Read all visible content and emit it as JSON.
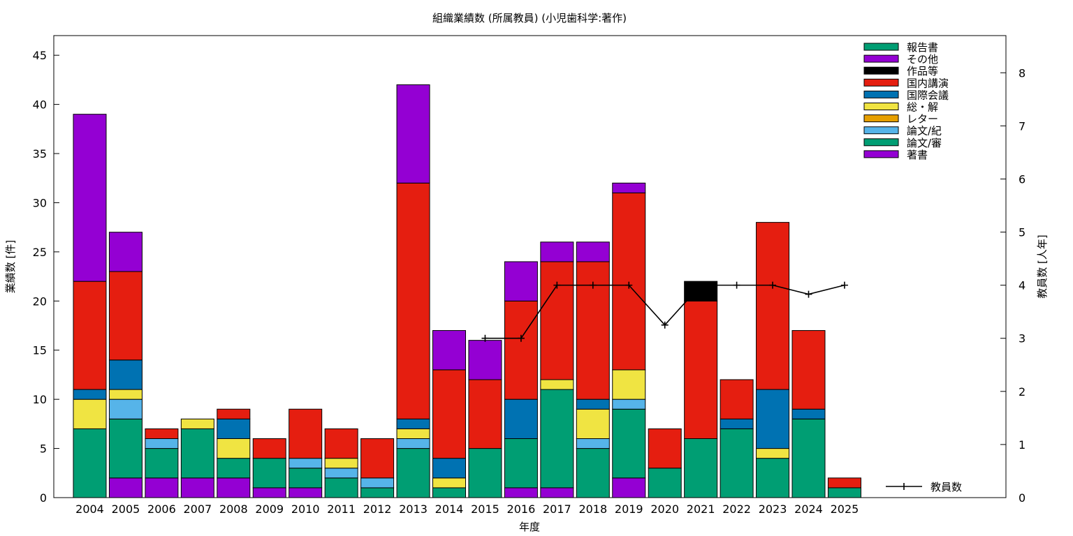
{
  "chart_data": {
    "type": "bar",
    "title": "組織業績数 (所属教員) (小児歯科学:著作)",
    "xlabel": "年度",
    "ylabel": "業績数 [件]",
    "y2label": "教員数 [人年]",
    "categories": [
      "2004",
      "2005",
      "2006",
      "2007",
      "2008",
      "2009",
      "2010",
      "2011",
      "2012",
      "2013",
      "2014",
      "2015",
      "2016",
      "2017",
      "2018",
      "2019",
      "2020",
      "2021",
      "2022",
      "2023",
      "2024",
      "2025"
    ],
    "ylim": [
      0,
      47
    ],
    "yticks": [
      0,
      5,
      10,
      15,
      20,
      25,
      30,
      35,
      40,
      45
    ],
    "y2lim": [
      0,
      8.7
    ],
    "y2ticks": [
      0,
      1,
      2,
      3,
      4,
      5,
      6,
      7,
      8
    ],
    "grid": false,
    "legend_position": "top-right",
    "stacked": true,
    "series": [
      {
        "name": "著書",
        "color": "#9400d3",
        "values": [
          0,
          2,
          2,
          2,
          2,
          1,
          1,
          0,
          0,
          0,
          0,
          0,
          1,
          1,
          0,
          2,
          0,
          0,
          0,
          0,
          0,
          0
        ]
      },
      {
        "name": "論文/審",
        "color": "#009e73",
        "values": [
          7,
          6,
          3,
          5,
          2,
          3,
          2,
          2,
          1,
          5,
          1,
          5,
          5,
          10,
          5,
          7,
          3,
          6,
          7,
          4,
          8,
          1
        ]
      },
      {
        "name": "論文/紀",
        "color": "#56b4e9",
        "values": [
          0,
          2,
          1,
          0,
          0,
          0,
          1,
          1,
          1,
          1,
          0,
          0,
          0,
          0,
          1,
          1,
          0,
          0,
          0,
          0,
          0,
          0
        ]
      },
      {
        "name": "レター",
        "color": "#e69f00",
        "values": [
          0,
          0,
          0,
          0,
          0,
          0,
          0,
          0,
          0,
          0,
          0,
          0,
          0,
          0,
          0,
          0,
          0,
          0,
          0,
          0,
          0,
          0
        ]
      },
      {
        "name": "総・解",
        "color": "#f0e442",
        "values": [
          3,
          1,
          0,
          1,
          2,
          0,
          0,
          1,
          0,
          1,
          1,
          0,
          0,
          1,
          3,
          3,
          0,
          0,
          0,
          1,
          0,
          0
        ]
      },
      {
        "name": "国際会議",
        "color": "#0072b2",
        "values": [
          1,
          3,
          0,
          0,
          2,
          0,
          0,
          0,
          0,
          1,
          2,
          0,
          4,
          0,
          1,
          0,
          0,
          0,
          1,
          6,
          1,
          0
        ]
      },
      {
        "name": "国内講演",
        "color": "#e51e10",
        "values": [
          11,
          9,
          1,
          0,
          1,
          2,
          5,
          3,
          4,
          24,
          9,
          7,
          10,
          12,
          14,
          18,
          4,
          14,
          4,
          17,
          8,
          1
        ]
      },
      {
        "name": "作品等",
        "color": "#000000",
        "values": [
          0,
          0,
          0,
          0,
          0,
          0,
          0,
          0,
          0,
          0,
          0,
          0,
          0,
          0,
          0,
          0,
          0,
          2,
          0,
          0,
          0,
          0
        ]
      },
      {
        "name": "その他",
        "color": "#9400d3",
        "values": [
          17,
          4,
          0,
          0,
          0,
          0,
          0,
          0,
          0,
          10,
          4,
          4,
          4,
          2,
          2,
          1,
          0,
          0,
          0,
          0,
          0,
          0
        ]
      },
      {
        "name": "報告書",
        "color": "#009e73",
        "values": [
          0,
          0,
          0,
          0,
          0,
          0,
          0,
          0,
          0,
          0,
          0,
          0,
          0,
          0,
          0,
          0,
          0,
          0,
          0,
          0,
          0,
          0
        ]
      }
    ],
    "line_series": {
      "name": "教員数",
      "color": "#000000",
      "x": [
        "2015",
        "2016",
        "2017",
        "2018",
        "2019",
        "2020",
        "2021",
        "2022",
        "2023",
        "2024",
        "2025"
      ],
      "values": [
        3,
        3,
        4,
        4,
        4,
        3.25,
        4,
        4,
        4,
        3.83,
        4
      ]
    },
    "legend_order": [
      "報告書",
      "その他",
      "作品等",
      "国内講演",
      "国際会議",
      "総・解",
      "レター",
      "論文/紀",
      "論文/審",
      "著書"
    ]
  }
}
